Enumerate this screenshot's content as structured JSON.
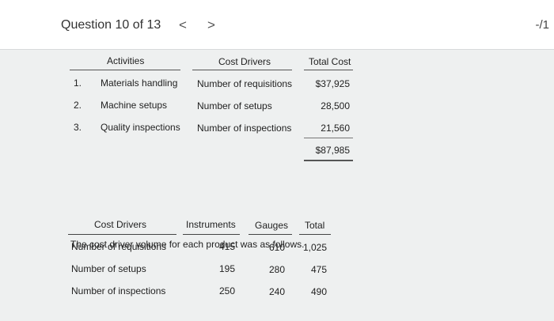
{
  "header": {
    "question_label": "Question 10 of 13",
    "prev_symbol": "<",
    "next_symbol": ">",
    "score": "-/1"
  },
  "activities_table": {
    "headers": {
      "activities": "Activities",
      "cost_drivers": "Cost Drivers",
      "total_cost": "Total Cost"
    },
    "rows": [
      {
        "num": "1.",
        "activity": "Materials handling",
        "driver": "Number of requisitions",
        "cost": "$37,925"
      },
      {
        "num": "2.",
        "activity": "Machine setups",
        "driver": "Number of setups",
        "cost": "28,500"
      },
      {
        "num": "3.",
        "activity": "Quality inspections",
        "driver": "Number of inspections",
        "cost": "21,560"
      }
    ],
    "total": "$87,985"
  },
  "paragraph": "The cost driver volume for each product was as follows.",
  "volume_table": {
    "headers": {
      "cost_drivers": "Cost Drivers",
      "instruments": "Instruments",
      "gauges": "Gauges",
      "total": "Total"
    },
    "rows": [
      {
        "driver": "Number of requisitions",
        "instruments": "415",
        "gauges": "610",
        "total": "1,025"
      },
      {
        "driver": "Number of setups",
        "instruments": "195",
        "gauges": "280",
        "total": "475"
      },
      {
        "driver": "Number of inspections",
        "instruments": "250",
        "gauges": "240",
        "total": "490"
      }
    ]
  }
}
